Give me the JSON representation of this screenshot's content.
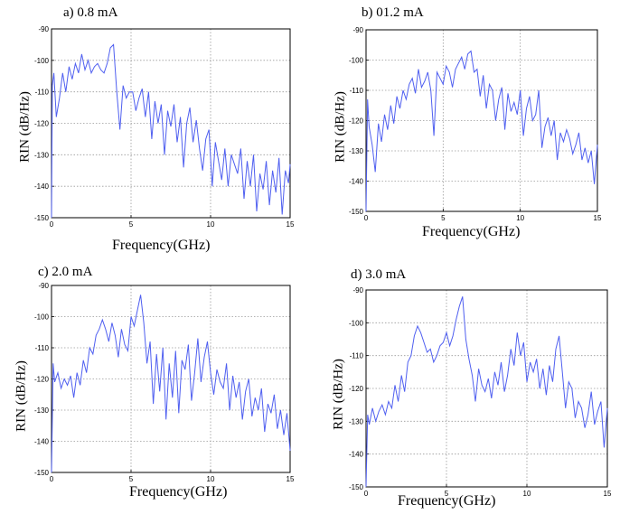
{
  "panels": [
    {
      "title": "a) 0.8 mA",
      "xlabel": "Frequency(GHz)",
      "ylabel": "RIN (dB/Hz)"
    },
    {
      "title": "b) 01.2 mA",
      "xlabel": "Frequency(GHz)",
      "ylabel": "RIN (dB/Hz)"
    },
    {
      "title": "c) 2.0 mA",
      "xlabel": "Frequency(GHz)",
      "ylabel": "RIN (dB/Hz)"
    },
    {
      "title": "d) 3.0 mA",
      "xlabel": "Frequency(GHz)",
      "ylabel": "RIN (dB/Hz)"
    }
  ],
  "colors": {
    "line": "#4f5ff0",
    "grid": "#9a9a9a",
    "axis": "#000000"
  },
  "chart_data": [
    {
      "type": "line",
      "title": "a) 0.8 mA",
      "xlabel": "Frequency(GHz)",
      "ylabel": "RIN (dB/Hz)",
      "xlim": [
        0,
        15
      ],
      "ylim": [
        -150,
        -90
      ],
      "xticks": [
        0,
        5,
        10,
        15
      ],
      "yticks": [
        -90,
        -100,
        -110,
        -120,
        -130,
        -140,
        -150
      ],
      "grid": true,
      "x": [
        0,
        0.05,
        0.15,
        0.3,
        0.5,
        0.7,
        0.9,
        1.1,
        1.3,
        1.5,
        1.7,
        1.9,
        2.1,
        2.3,
        2.5,
        2.7,
        2.9,
        3.1,
        3.3,
        3.5,
        3.7,
        3.9,
        4.1,
        4.3,
        4.5,
        4.7,
        4.9,
        5.1,
        5.3,
        5.5,
        5.7,
        5.9,
        6.1,
        6.3,
        6.5,
        6.7,
        6.9,
        7.1,
        7.3,
        7.5,
        7.7,
        7.9,
        8.1,
        8.3,
        8.5,
        8.7,
        8.9,
        9.1,
        9.3,
        9.5,
        9.7,
        9.9,
        10.1,
        10.3,
        10.5,
        10.7,
        10.9,
        11.1,
        11.3,
        11.5,
        11.7,
        11.9,
        12.1,
        12.3,
        12.5,
        12.7,
        12.9,
        13.1,
        13.3,
        13.5,
        13.7,
        13.9,
        14.1,
        14.3,
        14.5,
        14.7,
        14.9,
        15
      ],
      "y": [
        -150,
        -108,
        -104,
        -118,
        -112,
        -104,
        -110,
        -102,
        -106,
        -101,
        -104,
        -98,
        -103,
        -100,
        -104,
        -102,
        -101,
        -103,
        -104,
        -101,
        -96,
        -95,
        -110,
        -122,
        -108,
        -112,
        -110,
        -110,
        -116,
        -112,
        -109,
        -118,
        -110,
        -125,
        -113,
        -120,
        -114,
        -130,
        -116,
        -121,
        -114,
        -126,
        -118,
        -134,
        -120,
        -115,
        -126,
        -119,
        -128,
        -135,
        -125,
        -122,
        -140,
        -126,
        -132,
        -138,
        -128,
        -140,
        -130,
        -133,
        -136,
        -128,
        -144,
        -132,
        -140,
        -130,
        -148,
        -136,
        -141,
        -132,
        -146,
        -135,
        -142,
        -131,
        -149,
        -135,
        -139,
        -133
      ]
    },
    {
      "type": "line",
      "title": "b) 01.2 mA",
      "xlabel": "Frequency(GHz)",
      "ylabel": "RIN (dB/Hz)",
      "xlim": [
        0,
        15
      ],
      "ylim": [
        -150,
        -90
      ],
      "xticks": [
        0,
        5,
        10,
        15
      ],
      "yticks": [
        -90,
        -100,
        -110,
        -120,
        -130,
        -140,
        -150
      ],
      "grid": true,
      "x": [
        0,
        0.1,
        0.2,
        0.4,
        0.6,
        0.8,
        1.0,
        1.2,
        1.4,
        1.6,
        1.8,
        2.0,
        2.2,
        2.4,
        2.6,
        2.8,
        3.0,
        3.2,
        3.4,
        3.6,
        3.8,
        4.0,
        4.2,
        4.4,
        4.6,
        4.8,
        5.0,
        5.2,
        5.4,
        5.6,
        5.8,
        6.0,
        6.2,
        6.4,
        6.6,
        6.8,
        7.0,
        7.2,
        7.4,
        7.6,
        7.8,
        8.0,
        8.2,
        8.4,
        8.6,
        8.8,
        9.0,
        9.2,
        9.4,
        9.6,
        9.8,
        10.0,
        10.2,
        10.4,
        10.6,
        10.8,
        11.0,
        11.2,
        11.4,
        11.6,
        11.8,
        12.0,
        12.2,
        12.4,
        12.6,
        12.8,
        13.0,
        13.2,
        13.4,
        13.6,
        13.8,
        14.0,
        14.2,
        14.4,
        14.6,
        14.8,
        15
      ],
      "y": [
        -150,
        -113,
        -122,
        -128,
        -137,
        -121,
        -127,
        -118,
        -123,
        -115,
        -121,
        -112,
        -116,
        -110,
        -113,
        -108,
        -106,
        -111,
        -103,
        -109,
        -107,
        -104,
        -110,
        -125,
        -104,
        -106,
        -108,
        -102,
        -104,
        -109,
        -103,
        -101,
        -99,
        -103,
        -98,
        -97,
        -104,
        -103,
        -112,
        -105,
        -116,
        -108,
        -110,
        -120,
        -113,
        -109,
        -123,
        -111,
        -117,
        -114,
        -118,
        -110,
        -125,
        -116,
        -112,
        -120,
        -118,
        -110,
        -129,
        -122,
        -119,
        -125,
        -120,
        -133,
        -124,
        -127,
        -123,
        -126,
        -131,
        -128,
        -124,
        -133,
        -129,
        -134,
        -130,
        -141,
        -128
      ]
    },
    {
      "type": "line",
      "title": "c) 2.0 mA",
      "xlabel": "Frequency(GHz)",
      "ylabel": "RIN (dB/Hz)",
      "xlim": [
        0,
        15
      ],
      "ylim": [
        -150,
        -90
      ],
      "xticks": [
        0,
        5,
        10,
        15
      ],
      "yticks": [
        -90,
        -100,
        -110,
        -120,
        -130,
        -140,
        -150
      ],
      "grid": true,
      "x": [
        0,
        0.1,
        0.2,
        0.4,
        0.6,
        0.8,
        1.0,
        1.2,
        1.4,
        1.6,
        1.8,
        2.0,
        2.2,
        2.4,
        2.6,
        2.8,
        3.0,
        3.2,
        3.4,
        3.6,
        3.8,
        4.0,
        4.2,
        4.4,
        4.6,
        4.8,
        5.0,
        5.2,
        5.4,
        5.6,
        5.8,
        6.0,
        6.2,
        6.4,
        6.6,
        6.8,
        7.0,
        7.2,
        7.4,
        7.6,
        7.8,
        8.0,
        8.2,
        8.4,
        8.6,
        8.8,
        9.0,
        9.2,
        9.4,
        9.6,
        9.8,
        10.0,
        10.2,
        10.4,
        10.6,
        10.8,
        11.0,
        11.2,
        11.4,
        11.6,
        11.8,
        12.0,
        12.2,
        12.4,
        12.6,
        12.8,
        13.0,
        13.2,
        13.4,
        13.6,
        13.8,
        14.0,
        14.2,
        14.4,
        14.6,
        14.8,
        15
      ],
      "y": [
        -150,
        -115,
        -121,
        -118,
        -123,
        -120,
        -122,
        -119,
        -126,
        -118,
        -122,
        -114,
        -118,
        -110,
        -112,
        -106,
        -104,
        -101,
        -104,
        -108,
        -102,
        -106,
        -113,
        -104,
        -109,
        -111,
        -100,
        -103,
        -98,
        -93,
        -102,
        -115,
        -108,
        -128,
        -112,
        -124,
        -110,
        -133,
        -115,
        -126,
        -111,
        -131,
        -114,
        -117,
        -109,
        -127,
        -118,
        -107,
        -121,
        -113,
        -108,
        -118,
        -125,
        -117,
        -121,
        -123,
        -115,
        -130,
        -119,
        -126,
        -121,
        -133,
        -124,
        -120,
        -132,
        -126,
        -130,
        -123,
        -137,
        -128,
        -131,
        -125,
        -136,
        -130,
        -138,
        -131,
        -143
      ]
    },
    {
      "type": "line",
      "title": "d) 3.0 mA",
      "xlabel": "Frequency(GHz)",
      "ylabel": "RIN (dB/Hz)",
      "xlim": [
        0,
        15
      ],
      "ylim": [
        -150,
        -90
      ],
      "xticks": [
        0,
        5,
        10,
        15
      ],
      "yticks": [
        -90,
        -100,
        -110,
        -120,
        -130,
        -140,
        -150
      ],
      "grid": true,
      "x": [
        0,
        0.1,
        0.2,
        0.4,
        0.6,
        0.8,
        1.0,
        1.2,
        1.4,
        1.6,
        1.8,
        2.0,
        2.2,
        2.4,
        2.6,
        2.8,
        3.0,
        3.2,
        3.4,
        3.6,
        3.8,
        4.0,
        4.2,
        4.4,
        4.6,
        4.8,
        5.0,
        5.2,
        5.4,
        5.6,
        5.8,
        6.0,
        6.2,
        6.4,
        6.6,
        6.8,
        7.0,
        7.2,
        7.4,
        7.6,
        7.8,
        8.0,
        8.2,
        8.4,
        8.6,
        8.8,
        9.0,
        9.2,
        9.4,
        9.6,
        9.8,
        10.0,
        10.2,
        10.4,
        10.6,
        10.8,
        11.0,
        11.2,
        11.4,
        11.6,
        11.8,
        12.0,
        12.2,
        12.4,
        12.6,
        12.8,
        13.0,
        13.2,
        13.4,
        13.6,
        13.8,
        14.0,
        14.2,
        14.4,
        14.6,
        14.8,
        15
      ],
      "y": [
        -150,
        -128,
        -131,
        -126,
        -130,
        -127,
        -125,
        -128,
        -124,
        -126,
        -119,
        -124,
        -116,
        -121,
        -112,
        -110,
        -104,
        -101,
        -103,
        -106,
        -109,
        -108,
        -112,
        -110,
        -107,
        -106,
        -103,
        -107,
        -104,
        -99,
        -95,
        -92,
        -105,
        -111,
        -116,
        -124,
        -114,
        -119,
        -121,
        -117,
        -123,
        -115,
        -119,
        -112,
        -121,
        -116,
        -108,
        -113,
        -103,
        -110,
        -106,
        -118,
        -112,
        -115,
        -111,
        -120,
        -114,
        -122,
        -113,
        -118,
        -108,
        -104,
        -115,
        -126,
        -118,
        -120,
        -129,
        -124,
        -126,
        -132,
        -128,
        -121,
        -131,
        -127,
        -124,
        -138,
        -126
      ]
    }
  ]
}
